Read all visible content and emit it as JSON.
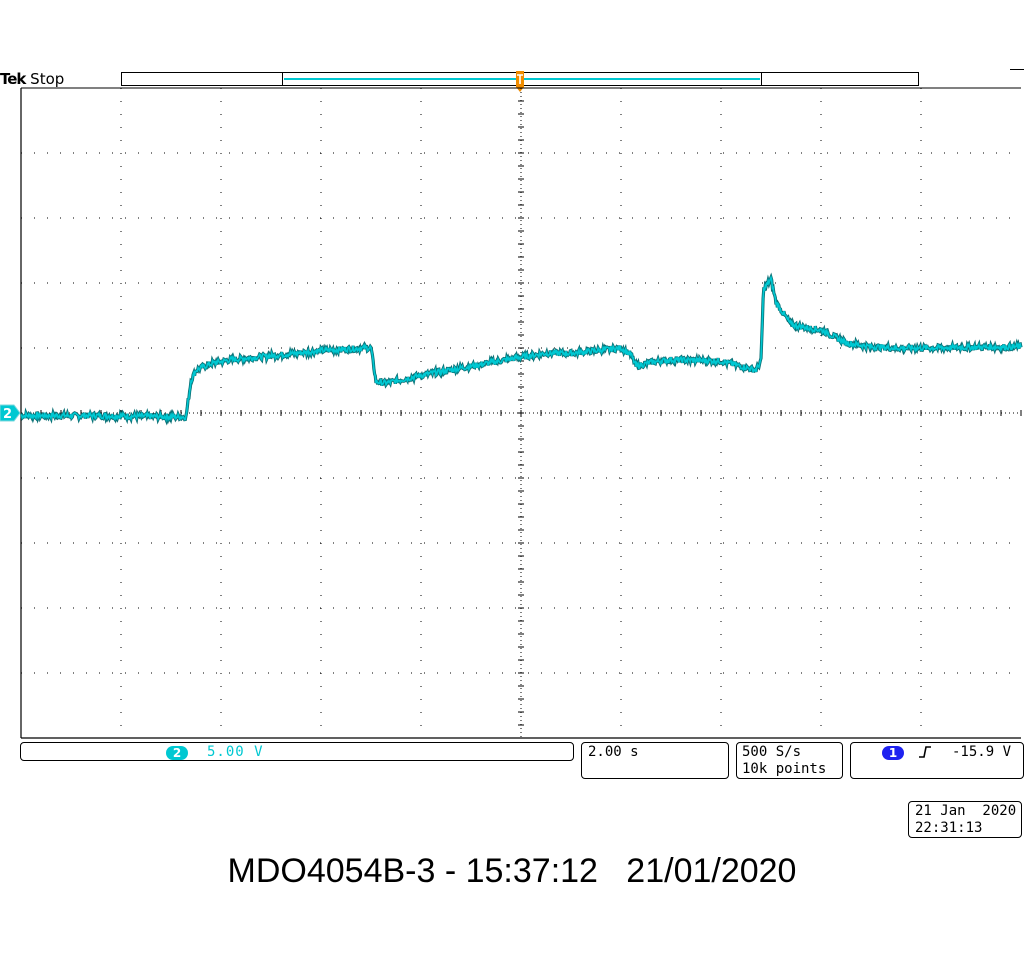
{
  "header": {
    "brand": "Tek",
    "acq_state": "Stop"
  },
  "channel": {
    "number": "2",
    "scale": "5.00 V",
    "color": "#00c8d2"
  },
  "timebase": {
    "scale": "2.00 s"
  },
  "acquisition": {
    "sample_rate": "500 S/s",
    "record_length": "10k points"
  },
  "trigger": {
    "source": "1",
    "slope_icon": "rising-edge-icon",
    "level": "-15.9 V",
    "source_color": "#1e22f0",
    "marker_color": "#f08c00"
  },
  "datetime": {
    "date": "21 Jan  2020",
    "time": "22:31:13"
  },
  "caption": "MDO4054B-3 - 15:37:12   21/01/2020",
  "chart_data": {
    "type": "line",
    "title": "",
    "xlabel": "",
    "ylabel": "",
    "x_unit": "s",
    "y_unit": "V",
    "xlim": [
      -10,
      10
    ],
    "ylim": [
      -25,
      25
    ],
    "grid": true,
    "series": [
      {
        "name": "2",
        "x": [
          -10.0,
          -8.5,
          -6.7,
          -6.6,
          -6.5,
          -6.2,
          -5.8,
          -5.0,
          -4.0,
          -3.1,
          -3.0,
          -2.9,
          -2.7,
          -2.0,
          -1.0,
          0.0,
          0.5,
          1.0,
          2.0,
          2.2,
          2.3,
          2.6,
          3.0,
          4.0,
          4.7,
          4.8,
          4.85,
          5.0,
          5.1,
          5.4,
          5.8,
          6.0,
          6.5,
          7.0,
          7.5,
          8.0,
          10.0
        ],
        "y": [
          -0.2,
          -0.2,
          -0.3,
          2.5,
          3.3,
          3.8,
          4.1,
          4.4,
          4.8,
          5.0,
          5.0,
          2.4,
          2.3,
          2.9,
          3.6,
          4.3,
          4.6,
          4.6,
          5.0,
          4.5,
          3.6,
          3.9,
          4.1,
          4.0,
          3.3,
          4.0,
          9.5,
          10.3,
          8.5,
          6.8,
          6.5,
          6.4,
          5.4,
          5.1,
          5.0,
          5.0,
          5.1
        ]
      }
    ],
    "noise_vpp": 0.45
  }
}
